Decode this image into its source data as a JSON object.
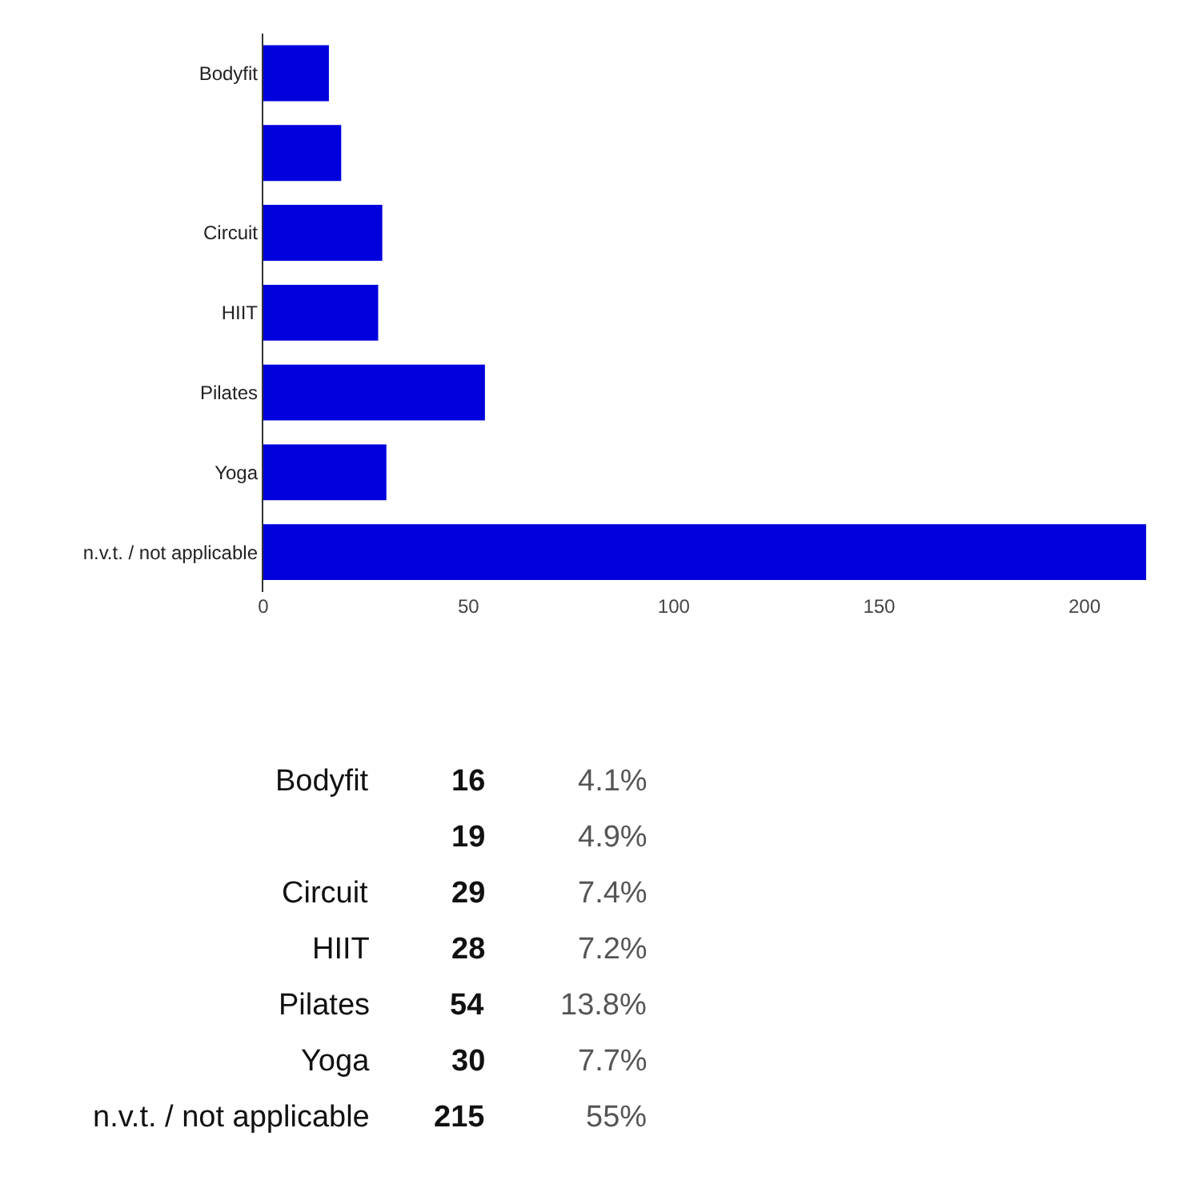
{
  "chart_data": [
    {
      "type": "bar",
      "orientation": "horizontal",
      "categories": [
        "Bodyfit",
        null,
        "Circuit",
        "HIIT",
        "Pilates",
        "Yoga",
        "n.v.t. / not applicable"
      ],
      "values": [
        16,
        19,
        29,
        28,
        54,
        30,
        215
      ],
      "color": "#0000dd",
      "xlim": [
        0,
        215
      ],
      "xticks": [
        0,
        50,
        100,
        150,
        200
      ]
    },
    {
      "type": "other",
      "categories": [
        "Bodyfit",
        null,
        "Circuit",
        "HIIT",
        "Pilates",
        "Yoga",
        "n.v.t. / not applicable"
      ],
      "annotations": [
        "16",
        "4.1%",
        "19",
        "4.9%",
        "29",
        "7.4%",
        "28",
        "7.2%",
        "54",
        "13.8%",
        "30",
        "7.7%",
        "215",
        "55%"
      ]
    }
  ]
}
